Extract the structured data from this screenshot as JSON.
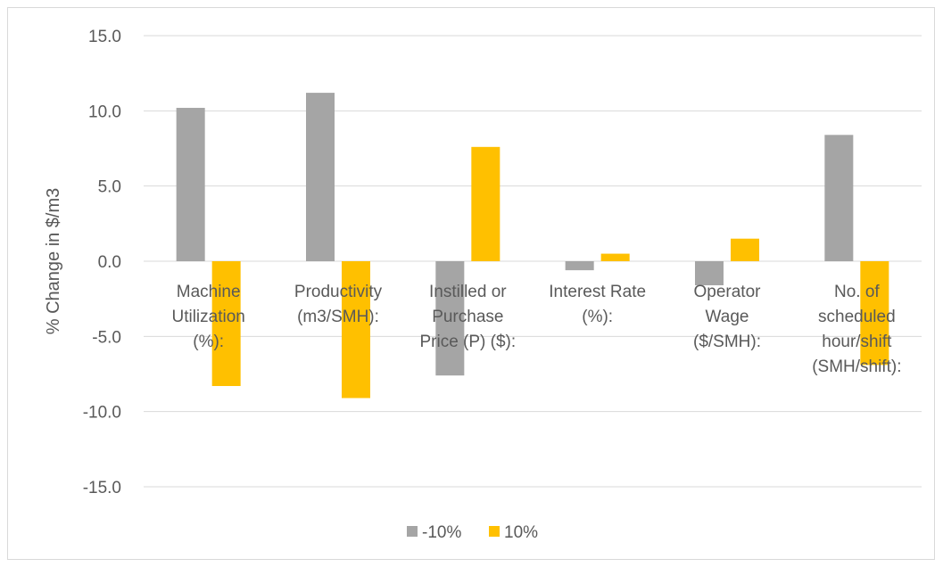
{
  "chart_data": {
    "type": "bar",
    "title": "",
    "xlabel": "",
    "ylabel": "% Change in $/m3",
    "ylim": [
      -15,
      15
    ],
    "yticks": [
      "15.0",
      "10.0",
      "5.0",
      "0.0",
      "-5.0",
      "-10.0",
      "-15.0"
    ],
    "grid": true,
    "legend_position": "bottom",
    "categories": [
      [
        "Machine",
        "Utilization",
        "(%):"
      ],
      [
        "Productivity",
        "(m3/SMH):"
      ],
      [
        "Instilled or",
        "Purchase",
        "Price (P) ($):"
      ],
      [
        "Interest Rate",
        "(%):"
      ],
      [
        "Operator",
        "Wage",
        "($/SMH):"
      ],
      [
        "No. of",
        "scheduled",
        "hour/shift",
        "(SMH/shift):"
      ]
    ],
    "series": [
      {
        "name": "-10%",
        "color": "#a5a5a5",
        "values": [
          10.2,
          11.2,
          -7.6,
          -0.6,
          -1.6,
          8.4
        ]
      },
      {
        "name": "10%",
        "color": "#ffc000",
        "values": [
          -8.3,
          -9.1,
          7.6,
          0.5,
          1.5,
          -6.9
        ]
      }
    ]
  }
}
